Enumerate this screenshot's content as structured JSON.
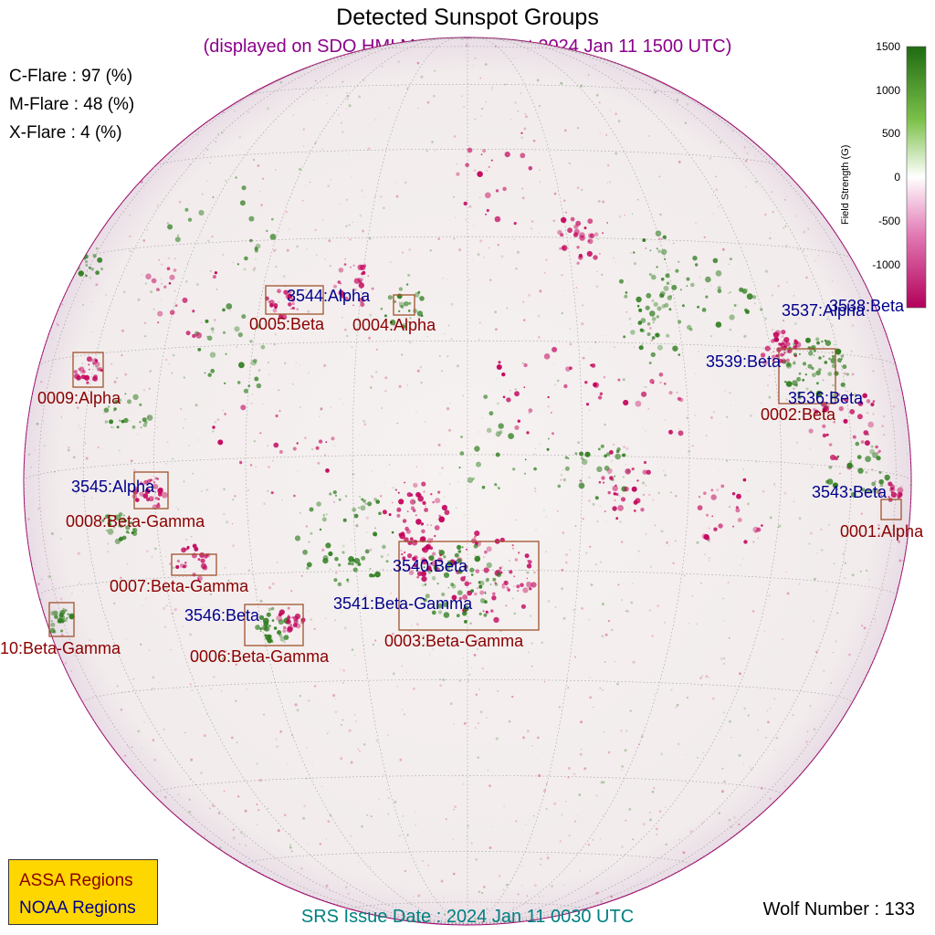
{
  "title": "Detected Sunspot Groups",
  "subtitle": "(displayed on SDO HMI Magnetogram at 2024 Jan 11 1500 UTC)",
  "flare_probabilities": [
    {
      "label": "C-Flare : 97 (%)"
    },
    {
      "label": "M-Flare : 48 (%)"
    },
    {
      "label": "X-Flare :  4 (%)"
    }
  ],
  "colorbar": {
    "title": "Field Strength (G)",
    "ticks": [
      "1500",
      "1000",
      "500",
      "0",
      "-500",
      "-1000"
    ],
    "colors": {
      "positive": "#2e7d1e",
      "zero": "#ffffff",
      "negative": "#c2005a"
    }
  },
  "regions": {
    "assa": [
      "0001:Alpha",
      "0002:Beta",
      "0003:Beta-Gamma",
      "0004:Alpha",
      "0005:Beta",
      "0006:Beta-Gamma",
      "0007:Beta-Gamma",
      "0008:Beta-Gamma",
      "0009:Alpha",
      "10:Beta-Gamma"
    ],
    "noaa": [
      "3536:Beta",
      "3537:Alpha",
      "3538:Beta",
      "3539:Beta",
      "3540:Beta",
      "3541:Beta-Gamma",
      "3543:Beta",
      "3544:Alpha",
      "3545:Alpha",
      "3546:Beta"
    ]
  },
  "legend": {
    "assa": "ASSA Regions",
    "noaa": "NOAA Regions",
    "colors": {
      "assa": "#8b0000",
      "noaa": "#00008b",
      "background": "#ffd700"
    }
  },
  "issue_date": "SRS Issue Date : 2024 Jan 11 0030 UTC",
  "wolf_number": "Wolf Number : 133"
}
